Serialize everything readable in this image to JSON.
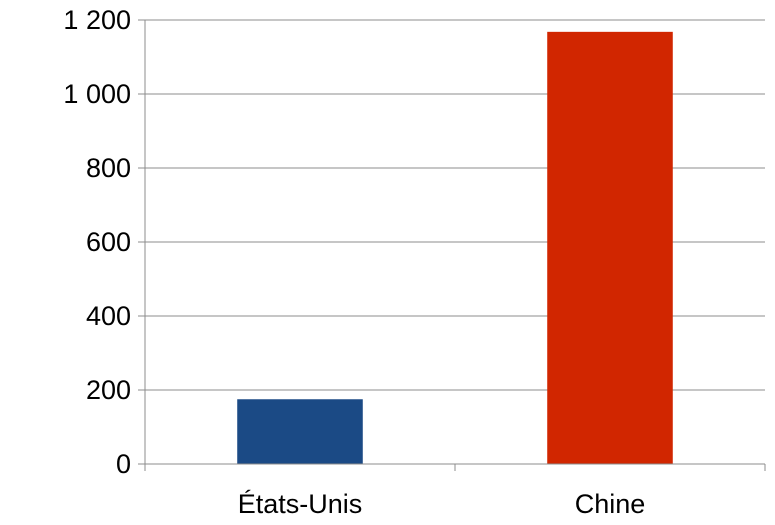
{
  "chart_data": {
    "type": "bar",
    "categories": [
      "États-Unis",
      "Chine"
    ],
    "values": [
      175,
      1168
    ],
    "colors": [
      "#1b4a85",
      "#d12600"
    ],
    "y_ticks": [
      0,
      200,
      400,
      600,
      800,
      1000,
      1200
    ],
    "y_tick_labels": [
      "0",
      "200",
      "400",
      "600",
      "800",
      "1 000",
      "1 200"
    ],
    "ylim": [
      0,
      1200
    ],
    "grid": true,
    "legend": false
  }
}
